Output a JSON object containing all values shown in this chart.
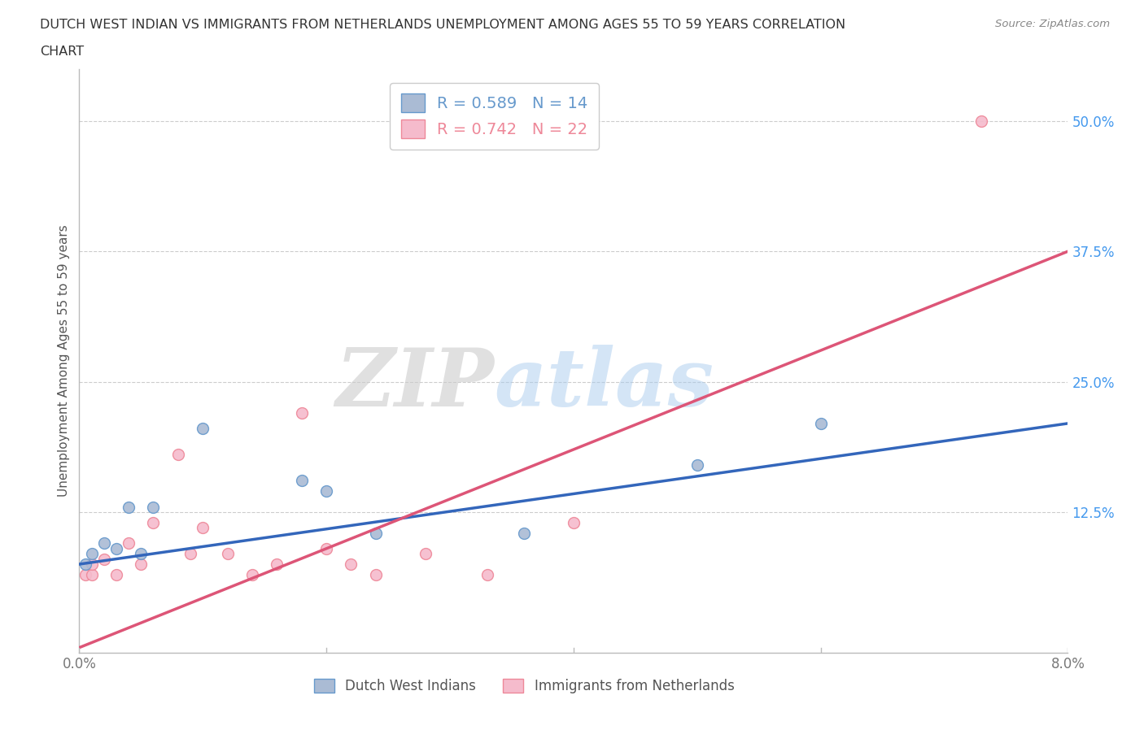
{
  "title_line1": "DUTCH WEST INDIAN VS IMMIGRANTS FROM NETHERLANDS UNEMPLOYMENT AMONG AGES 55 TO 59 YEARS CORRELATION",
  "title_line2": "CHART",
  "source": "Source: ZipAtlas.com",
  "ylabel": "Unemployment Among Ages 55 to 59 years",
  "xlim": [
    0.0,
    0.08
  ],
  "ylim": [
    -0.01,
    0.55
  ],
  "xticks": [
    0.0,
    0.02,
    0.04,
    0.06,
    0.08
  ],
  "xticklabels": [
    "0.0%",
    "",
    "",
    "",
    "8.0%"
  ],
  "ytick_positions": [
    0.125,
    0.25,
    0.375,
    0.5
  ],
  "ytick_labels": [
    "12.5%",
    "25.0%",
    "37.5%",
    "50.0%"
  ],
  "blue_color": "#6699CC",
  "pink_color": "#EE8899",
  "blue_fill": "#AABBD4",
  "pink_fill": "#F5BBCC",
  "blue_R": 0.589,
  "blue_N": 14,
  "pink_R": 0.742,
  "pink_N": 22,
  "blue_label": "Dutch West Indians",
  "pink_label": "Immigrants from Netherlands",
  "watermark_zip": "ZIP",
  "watermark_atlas": "atlas",
  "blue_points_x": [
    0.0005,
    0.001,
    0.002,
    0.003,
    0.004,
    0.005,
    0.006,
    0.01,
    0.018,
    0.02,
    0.024,
    0.036,
    0.05,
    0.06
  ],
  "blue_points_y": [
    0.075,
    0.085,
    0.095,
    0.09,
    0.13,
    0.085,
    0.13,
    0.205,
    0.155,
    0.145,
    0.105,
    0.105,
    0.17,
    0.21
  ],
  "pink_points_x": [
    0.0005,
    0.001,
    0.001,
    0.002,
    0.003,
    0.004,
    0.005,
    0.006,
    0.008,
    0.009,
    0.01,
    0.012,
    0.014,
    0.016,
    0.018,
    0.02,
    0.022,
    0.024,
    0.028,
    0.033,
    0.04,
    0.073
  ],
  "pink_points_y": [
    0.065,
    0.065,
    0.075,
    0.08,
    0.065,
    0.095,
    0.075,
    0.115,
    0.18,
    0.085,
    0.11,
    0.085,
    0.065,
    0.075,
    0.22,
    0.09,
    0.075,
    0.065,
    0.085,
    0.065,
    0.115,
    0.5
  ],
  "blue_trend_x": [
    0.0,
    0.08
  ],
  "blue_trend_y": [
    0.075,
    0.21
  ],
  "pink_trend_x": [
    0.0,
    0.08
  ],
  "pink_trend_y": [
    -0.005,
    0.375
  ],
  "background_color": "#FFFFFF",
  "grid_color": "#CCCCCC",
  "ytick_color": "#4499EE",
  "marker_size": 100,
  "blue_line_color": "#3366BB",
  "pink_line_color": "#DD5577"
}
